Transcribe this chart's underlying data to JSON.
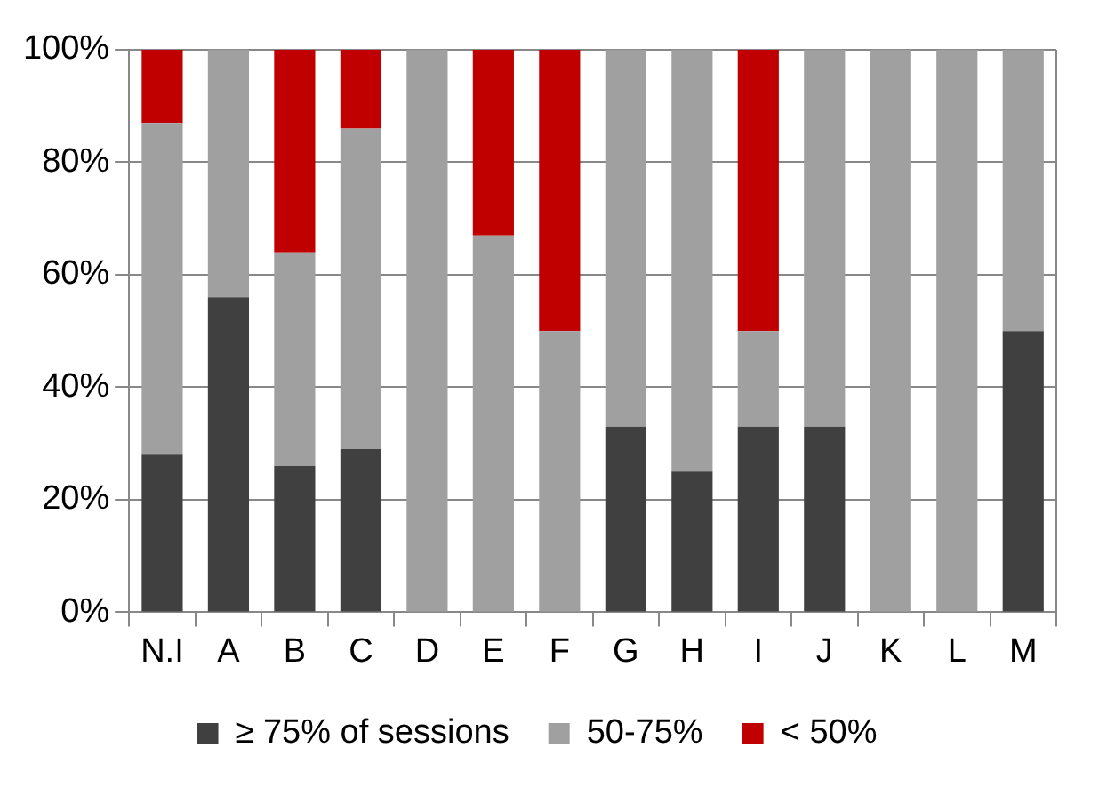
{
  "chart_data": {
    "type": "bar",
    "stacked": true,
    "categories": [
      "N.I",
      "A",
      "B",
      "C",
      "D",
      "E",
      "F",
      "G",
      "H",
      "I",
      "J",
      "K",
      "L",
      "M"
    ],
    "series": [
      {
        "name": "≥ 75% of sessions",
        "color": "#404040",
        "values": [
          28,
          56,
          26,
          29,
          0,
          0,
          0,
          33,
          25,
          33,
          33,
          0,
          0,
          50
        ]
      },
      {
        "name": "50-75%",
        "color": "#a0a0a0",
        "values": [
          59,
          44,
          38,
          57,
          100,
          67,
          50,
          67,
          75,
          17,
          67,
          100,
          100,
          50
        ]
      },
      {
        "name": "< 50%",
        "color": "#c00000",
        "values": [
          13,
          0,
          36,
          14,
          0,
          33,
          50,
          0,
          0,
          50,
          0,
          0,
          0,
          0
        ]
      }
    ],
    "ylim": [
      0,
      100
    ],
    "yticks": [
      {
        "value": 0,
        "label": "0%"
      },
      {
        "value": 20,
        "label": "20%"
      },
      {
        "value": 40,
        "label": "40%"
      },
      {
        "value": 60,
        "label": "60%"
      },
      {
        "value": 80,
        "label": "80%"
      },
      {
        "value": 100,
        "label": "100%"
      }
    ],
    "grid": "y",
    "legend": "bottom"
  }
}
